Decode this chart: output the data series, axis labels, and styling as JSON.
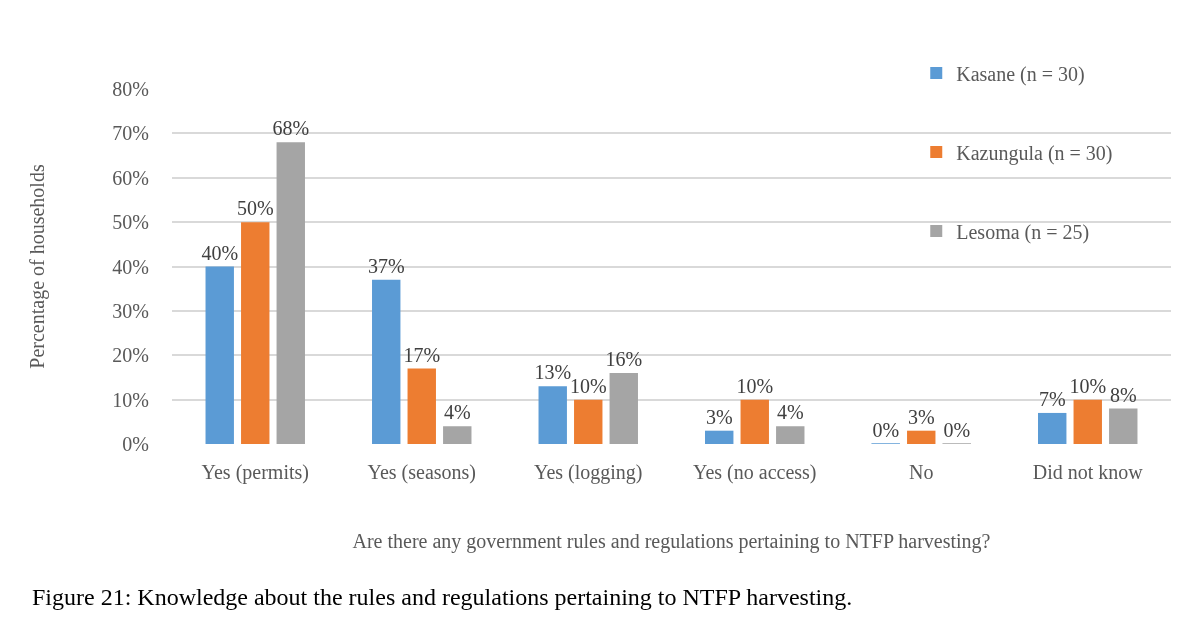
{
  "chart_data": {
    "type": "bar",
    "xlabel": "Are there any government rules and regulations pertaining to NTFP harvesting?",
    "ylabel": "Percentage of households",
    "categories": [
      "Yes (permits)",
      "Yes (seasons)",
      "Yes (logging)",
      "Yes (no access)",
      "No",
      "Did not know"
    ],
    "series": [
      {
        "name": "Kasane (n = 30)",
        "color": "#5b9bd5",
        "values": [
          40,
          37,
          13,
          3,
          0,
          7
        ],
        "value_labels": [
          "40%",
          "37%",
          "13%",
          "3%",
          "0%",
          "7%"
        ]
      },
      {
        "name": "Kazungula (n = 30)",
        "color": "#ed7d31",
        "values": [
          50,
          17,
          10,
          10,
          3,
          10
        ],
        "value_labels": [
          "50%",
          "17%",
          "10%",
          "10%",
          "3%",
          "10%"
        ]
      },
      {
        "name": "Lesoma (n = 25)",
        "color": "#a5a5a5",
        "values": [
          68,
          4,
          16,
          4,
          0,
          8
        ],
        "value_labels": [
          "68%",
          "4%",
          "16%",
          "4%",
          "0%",
          "8%"
        ]
      }
    ],
    "ylim": [
      0,
      80
    ],
    "yticks": [
      {
        "value": 0,
        "label": "0%"
      },
      {
        "value": 10,
        "label": "10%"
      },
      {
        "value": 20,
        "label": "20%"
      },
      {
        "value": 30,
        "label": "30%"
      },
      {
        "value": 40,
        "label": "40%"
      },
      {
        "value": 50,
        "label": "50%"
      },
      {
        "value": 60,
        "label": "60%"
      },
      {
        "value": 70,
        "label": "70%"
      },
      {
        "value": 80,
        "label": "80%"
      }
    ],
    "grid": "y",
    "legend": "top right",
    "annotations": [
      "Figure 21: Knowledge about the rules and regulations pertaining to NTFP harvesting."
    ]
  }
}
